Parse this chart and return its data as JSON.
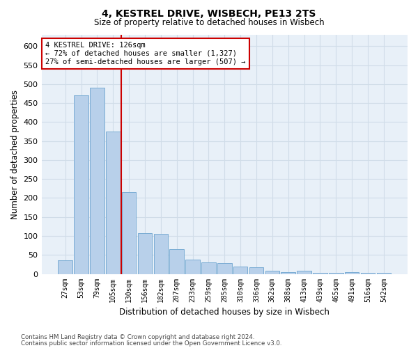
{
  "title1": "4, KESTREL DRIVE, WISBECH, PE13 2TS",
  "title2": "Size of property relative to detached houses in Wisbech",
  "xlabel": "Distribution of detached houses by size in Wisbech",
  "ylabel": "Number of detached properties",
  "bar_color": "#b8d0ea",
  "bar_edge_color": "#7aacd4",
  "background_color": "#e8f0f8",
  "grid_color": "#d0dce8",
  "annotation_text": "4 KESTREL DRIVE: 126sqm\n← 72% of detached houses are smaller (1,327)\n27% of semi-detached houses are larger (507) →",
  "annotation_box_color": "#ffffff",
  "annotation_box_edge_color": "#cc0000",
  "vline_color": "#cc0000",
  "categories": [
    "27sqm",
    "53sqm",
    "79sqm",
    "105sqm",
    "130sqm",
    "156sqm",
    "182sqm",
    "207sqm",
    "233sqm",
    "259sqm",
    "285sqm",
    "310sqm",
    "336sqm",
    "362sqm",
    "388sqm",
    "413sqm",
    "439sqm",
    "465sqm",
    "491sqm",
    "516sqm",
    "542sqm"
  ],
  "values": [
    35,
    470,
    490,
    375,
    215,
    107,
    105,
    65,
    38,
    30,
    28,
    20,
    18,
    8,
    5,
    8,
    2,
    2,
    5,
    2,
    2
  ],
  "ylim": [
    0,
    630
  ],
  "yticks": [
    0,
    50,
    100,
    150,
    200,
    250,
    300,
    350,
    400,
    450,
    500,
    550,
    600
  ],
  "footer1": "Contains HM Land Registry data © Crown copyright and database right 2024.",
  "footer2": "Contains public sector information licensed under the Open Government Licence v3.0."
}
